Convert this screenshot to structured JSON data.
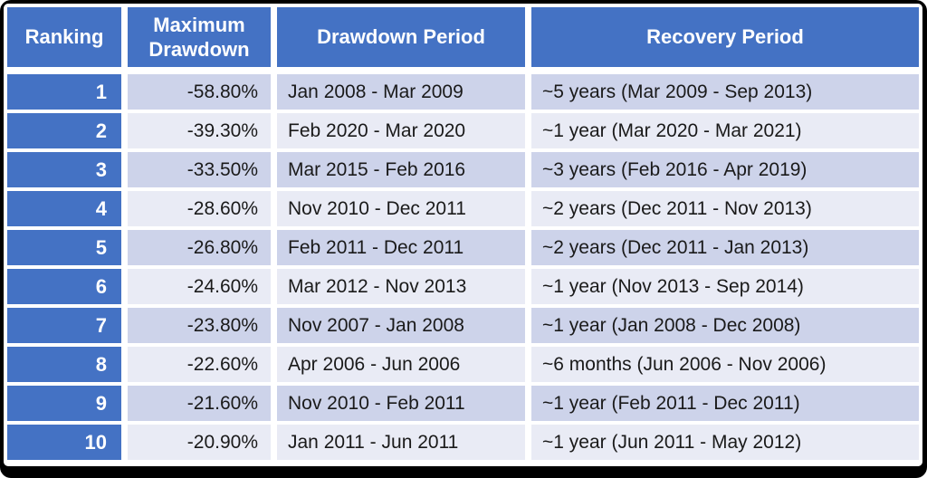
{
  "colors": {
    "frame": "#000000",
    "header_bg": "#4472C4",
    "band_dark": "#CDD3EA",
    "band_light": "#E9EBF5"
  },
  "table": {
    "headers": [
      "Ranking",
      "Maximum Drawdown",
      "Drawdown Period",
      "Recovery Period"
    ],
    "rows": [
      {
        "ranking": "1",
        "max_drawdown": "-58.80%",
        "drawdown_period": "Jan 2008 - Mar 2009",
        "recovery_period": "~5 years (Mar 2009 - Sep 2013)"
      },
      {
        "ranking": "2",
        "max_drawdown": "-39.30%",
        "drawdown_period": "Feb 2020 - Mar 2020",
        "recovery_period": "~1 year (Mar 2020 - Mar 2021)"
      },
      {
        "ranking": "3",
        "max_drawdown": "-33.50%",
        "drawdown_period": "Mar 2015 - Feb 2016",
        "recovery_period": "~3 years (Feb 2016 - Apr 2019)"
      },
      {
        "ranking": "4",
        "max_drawdown": "-28.60%",
        "drawdown_period": "Nov 2010 - Dec 2011",
        "recovery_period": "~2 years (Dec 2011 - Nov 2013)"
      },
      {
        "ranking": "5",
        "max_drawdown": "-26.80%",
        "drawdown_period": "Feb 2011 - Dec 2011",
        "recovery_period": "~2 years (Dec 2011 - Jan 2013)"
      },
      {
        "ranking": "6",
        "max_drawdown": "-24.60%",
        "drawdown_period": "Mar 2012 - Nov 2013",
        "recovery_period": "~1 year (Nov 2013 - Sep 2014)"
      },
      {
        "ranking": "7",
        "max_drawdown": "-23.80%",
        "drawdown_period": "Nov 2007 - Jan 2008",
        "recovery_period": "~1 year (Jan 2008 - Dec 2008)"
      },
      {
        "ranking": "8",
        "max_drawdown": "-22.60%",
        "drawdown_period": "Apr 2006 - Jun 2006",
        "recovery_period": "~6 months (Jun 2006 - Nov 2006)"
      },
      {
        "ranking": "9",
        "max_drawdown": "-21.60%",
        "drawdown_period": "Nov 2010 - Feb 2011",
        "recovery_period": "~1 year (Feb 2011 - Dec 2011)"
      },
      {
        "ranking": "10",
        "max_drawdown": "-20.90%",
        "drawdown_period": "Jan 2011 - Jun 2011",
        "recovery_period": "~1 year (Jun 2011 - May 2012)"
      }
    ]
  }
}
